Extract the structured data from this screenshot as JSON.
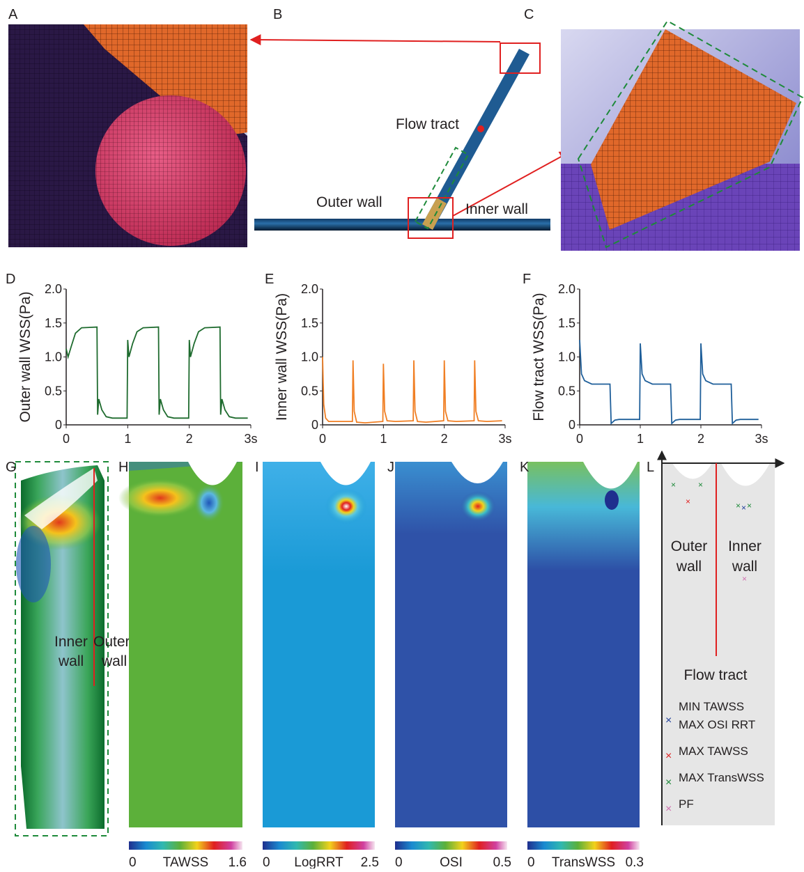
{
  "panel_labels": [
    "A",
    "B",
    "C",
    "D",
    "E",
    "F",
    "G",
    "H",
    "I",
    "J",
    "K",
    "L"
  ],
  "panel_b": {
    "flow_tract": "Flow tract",
    "outer_wall": "Outer wall",
    "inner_wall": "Inner wall"
  },
  "panel_g": {
    "inner": "Inner",
    "outer": "Outer",
    "wall_left": "wall",
    "wall_right": "wall"
  },
  "colorbars": [
    {
      "min": 0,
      "label": "TAWSS",
      "max": 1.6
    },
    {
      "min": 0,
      "label": "LogRRT",
      "max": 2.5
    },
    {
      "min": 0,
      "label": "OSI",
      "max": 0.5
    },
    {
      "min": 0,
      "label": "TransWSS",
      "max": 0.3
    }
  ],
  "panel_l": {
    "outer_wall": [
      "Outer",
      "wall"
    ],
    "inner_wall": [
      "Inner",
      "wall"
    ],
    "flow_tract": "Flow tract",
    "legend": [
      {
        "lines": [
          "MIN TAWSS",
          "MAX OSI RRT"
        ],
        "color": "#1f3f9a"
      },
      {
        "lines": [
          "MAX TAWSS"
        ],
        "color": "#e02020"
      },
      {
        "lines": [
          "MAX TransWSS"
        ],
        "color": "#1e8a3a"
      },
      {
        "lines": [
          "PF"
        ],
        "color": "#d070b0"
      }
    ]
  },
  "chart_data": [
    {
      "type": "line",
      "ylabel": "Outer wall WSS(Pa)",
      "color": "#1e6b2e",
      "xlim": [
        0,
        3
      ],
      "ylim": [
        0,
        2
      ],
      "xticks": [
        0,
        1,
        2,
        {
          "value": 3,
          "label": "3s"
        }
      ],
      "yticks": [
        0,
        0.5,
        {
          "value": 1,
          "label": "1.0"
        },
        1.5,
        {
          "value": 2,
          "label": "2.0"
        }
      ],
      "x": [
        0,
        0.03,
        0.08,
        0.15,
        0.25,
        0.5,
        0.51,
        0.53,
        0.58,
        0.65,
        0.75,
        0.99,
        1.0,
        1.02,
        1.08,
        1.15,
        1.25,
        1.5,
        1.51,
        1.53,
        1.58,
        1.65,
        1.75,
        1.99,
        2.0,
        2.02,
        2.08,
        2.15,
        2.25,
        2.5,
        2.51,
        2.53,
        2.58,
        2.65,
        2.75,
        2.95
      ],
      "values": [
        1.12,
        1.0,
        1.15,
        1.35,
        1.43,
        1.44,
        0.15,
        0.38,
        0.22,
        0.12,
        0.1,
        0.1,
        1.25,
        1.0,
        1.2,
        1.37,
        1.43,
        1.44,
        0.15,
        0.38,
        0.22,
        0.12,
        0.1,
        0.1,
        1.25,
        1.0,
        1.2,
        1.37,
        1.43,
        1.44,
        0.15,
        0.38,
        0.22,
        0.12,
        0.1,
        0.1
      ]
    },
    {
      "type": "line",
      "ylabel": "Inner wall WSS(Pa)",
      "color": "#f07f24",
      "xlim": [
        0,
        3
      ],
      "ylim": [
        0,
        2
      ],
      "xticks": [
        0,
        1,
        2,
        {
          "value": 3,
          "label": "3s"
        }
      ],
      "yticks": [
        0,
        0.5,
        {
          "value": 1,
          "label": "1.0"
        },
        1.5,
        {
          "value": 2,
          "label": "2.0"
        }
      ],
      "x": [
        0,
        0.02,
        0.05,
        0.1,
        0.49,
        0.5,
        0.52,
        0.56,
        0.7,
        0.99,
        1.0,
        1.02,
        1.06,
        1.2,
        1.49,
        1.5,
        1.52,
        1.56,
        1.7,
        1.99,
        2.0,
        2.02,
        2.06,
        2.2,
        2.49,
        2.5,
        2.52,
        2.56,
        2.7,
        2.95
      ],
      "values": [
        1.0,
        0.3,
        0.1,
        0.05,
        0.05,
        0.95,
        0.2,
        0.04,
        0.03,
        0.05,
        0.9,
        0.2,
        0.06,
        0.05,
        0.06,
        0.95,
        0.2,
        0.05,
        0.04,
        0.06,
        0.95,
        0.2,
        0.06,
        0.05,
        0.06,
        0.95,
        0.2,
        0.06,
        0.05,
        0.06
      ]
    },
    {
      "type": "line",
      "ylabel": "Flow tract WSS(Pa)",
      "color": "#1f5f9a",
      "xlim": [
        0,
        3
      ],
      "ylim": [
        0,
        2
      ],
      "xticks": [
        0,
        1,
        2,
        {
          "value": 3,
          "label": "3s"
        }
      ],
      "yticks": [
        0,
        0.5,
        {
          "value": 1,
          "label": "1.0"
        },
        1.5,
        {
          "value": 2,
          "label": "2.0"
        }
      ],
      "x": [
        0,
        0.03,
        0.08,
        0.2,
        0.5,
        0.52,
        0.58,
        0.65,
        0.99,
        1.0,
        1.03,
        1.08,
        1.2,
        1.5,
        1.52,
        1.58,
        1.65,
        1.99,
        2.0,
        2.03,
        2.08,
        2.2,
        2.5,
        2.52,
        2.58,
        2.65,
        2.95
      ],
      "values": [
        1.25,
        0.75,
        0.65,
        0.6,
        0.6,
        0.02,
        0.07,
        0.08,
        0.08,
        1.2,
        0.75,
        0.65,
        0.6,
        0.6,
        0.02,
        0.07,
        0.08,
        0.08,
        1.2,
        0.75,
        0.65,
        0.6,
        0.6,
        0.02,
        0.07,
        0.08,
        0.08
      ]
    }
  ]
}
